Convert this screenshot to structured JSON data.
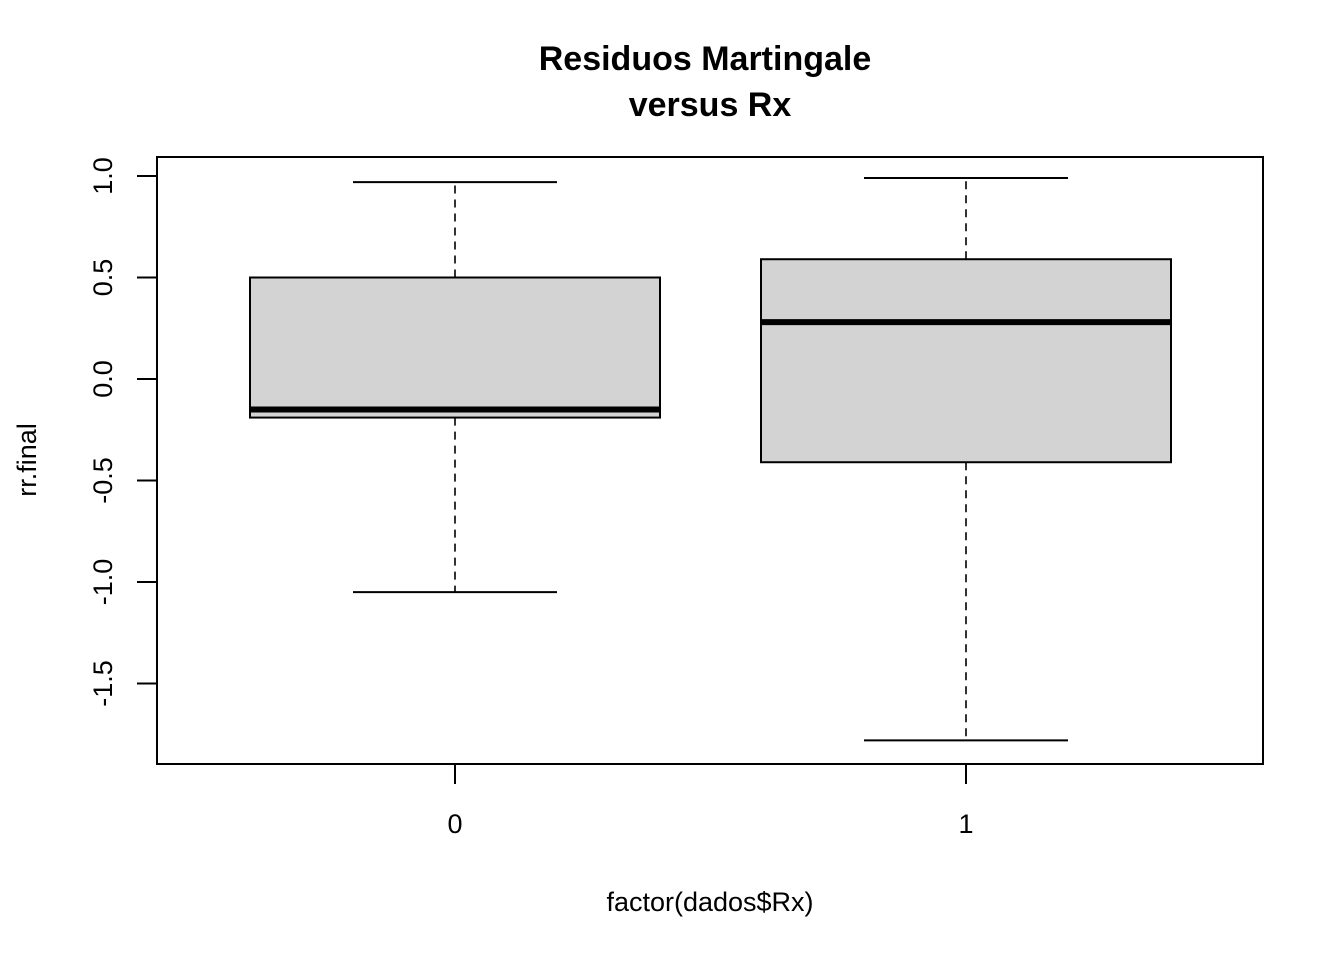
{
  "chart_data": {
    "type": "boxplot",
    "title_lines": [
      "Residuos Martingale",
      "versus Rx"
    ],
    "xlabel": "factor(dados$Rx)",
    "ylabel": "rr.final",
    "categories": [
      "0",
      "1"
    ],
    "yticks": [
      -1.5,
      -1.0,
      -0.5,
      0.0,
      0.5,
      1.0
    ],
    "ytick_labels": [
      "-1.5",
      "-1.0",
      "-0.5",
      "0.0",
      "0.5",
      "1.0"
    ],
    "ylim": [
      -1.8,
      1.1
    ],
    "box_fill": "#d3d3d3",
    "series": [
      {
        "category": "0",
        "min": -1.05,
        "q1": -0.19,
        "median": -0.15,
        "q3": 0.5,
        "max": 0.97
      },
      {
        "category": "1",
        "min": -1.78,
        "q1": -0.41,
        "median": 0.28,
        "q3": 0.59,
        "max": 0.99
      }
    ]
  }
}
